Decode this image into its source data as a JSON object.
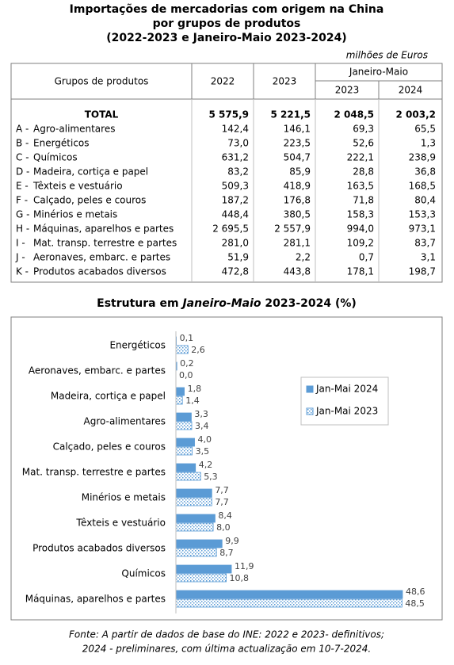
{
  "title": [
    "Importações de mercadorias com origem na China",
    "por grupos de produtos",
    "(2022-2023 e Janeiro-Maio 2023-2024)"
  ],
  "unit": "milhões de Euros",
  "table": {
    "header": [
      "Grupos de produtos",
      "2022",
      "2023",
      "Janeiro-Maio"
    ],
    "subheader": [
      "2023",
      "2024"
    ],
    "rows": [
      {
        "label": "TOTAL",
        "values": [
          "5 575,9",
          "5 221,5",
          "2 048,5",
          "2 003,2"
        ]
      },
      {
        "code": "A -",
        "label": "Agro-alimentares",
        "values": [
          "142,4",
          "146,1",
          "69,3",
          "65,5"
        ]
      },
      {
        "code": "B -",
        "label": "Energéticos",
        "values": [
          "73,0",
          "223,5",
          "52,6",
          "1,3"
        ]
      },
      {
        "code": "C -",
        "label": "Químicos",
        "values": [
          "631,2",
          "504,7",
          "222,1",
          "238,9"
        ]
      },
      {
        "code": "D -",
        "label": "Madeira, cortiça e papel",
        "values": [
          "83,2",
          "85,9",
          "28,8",
          "36,8"
        ]
      },
      {
        "code": "E -",
        "label": "Têxteis e vestuário",
        "values": [
          "509,3",
          "418,9",
          "163,5",
          "168,5"
        ]
      },
      {
        "code": "F -",
        "label": "Calçado, peles e couros",
        "values": [
          "187,2",
          "176,8",
          "71,8",
          "80,4"
        ]
      },
      {
        "code": "G -",
        "label": "Minérios e metais",
        "values": [
          "448,4",
          "380,5",
          "158,3",
          "153,3"
        ]
      },
      {
        "code": "H -",
        "label": "Máquinas, aparelhos e partes",
        "values": [
          "2 695,5",
          "2 557,9",
          "994,0",
          "973,1"
        ]
      },
      {
        "code": "I -",
        "label": "Mat. transp. terrestre e partes",
        "values": [
          "281,0",
          "281,1",
          "109,2",
          "83,7"
        ]
      },
      {
        "code": "J -",
        "label": "Aeronaves, embarc. e partes",
        "values": [
          "51,9",
          "2,2",
          "0,7",
          "3,1"
        ]
      },
      {
        "code": "K -",
        "label": "Produtos acabados diversos",
        "values": [
          "472,8",
          "443,8",
          "178,1",
          "198,7"
        ]
      }
    ]
  },
  "chart_data": {
    "type": "hbar",
    "title": [
      "Estrutura em ",
      "Janeiro-Maio",
      " 2023-2024 (%)"
    ],
    "categories": [
      "Energéticos",
      "Aeronaves, embarc. e partes",
      "Madeira, cortiça e papel",
      "Agro-alimentares",
      "Calçado, peles e couros",
      "Mat. transp. terrestre e partes",
      "Minérios e metais",
      "Têxteis e vestuário",
      "Produtos acabados diversos",
      "Químicos",
      "Máquinas, aparelhos e partes"
    ],
    "series": [
      {
        "name": "Jan-Mai 2024",
        "color": "#5b9bd5",
        "pattern": "solid",
        "values": [
          0.1,
          0.2,
          1.8,
          3.3,
          4.0,
          4.2,
          7.7,
          8.4,
          9.9,
          11.9,
          48.6
        ],
        "value_labels": [
          "0,1",
          "0,2",
          "1,8",
          "3,3",
          "4,0",
          "4,2",
          "7,7",
          "8,4",
          "9,9",
          "11,9",
          "48,6"
        ]
      },
      {
        "name": "Jan-Mai 2023",
        "color": "#5b9bd5",
        "pattern": "dotted",
        "values": [
          2.6,
          0.0,
          1.4,
          3.4,
          3.5,
          5.3,
          7.7,
          8.0,
          8.7,
          10.8,
          48.5
        ],
        "value_labels": [
          "2,6",
          "0,0",
          "1,4",
          "3,4",
          "3,5",
          "5,3",
          "7,7",
          "8,0",
          "8,7",
          "10,8",
          "48,5"
        ]
      }
    ],
    "legend": "right"
  },
  "source": [
    "Fonte: A partir de dados de base do INE: 2022 e 2023- definitivos;",
    "2024 - preliminares, com última actualização em 10-7-2024."
  ]
}
